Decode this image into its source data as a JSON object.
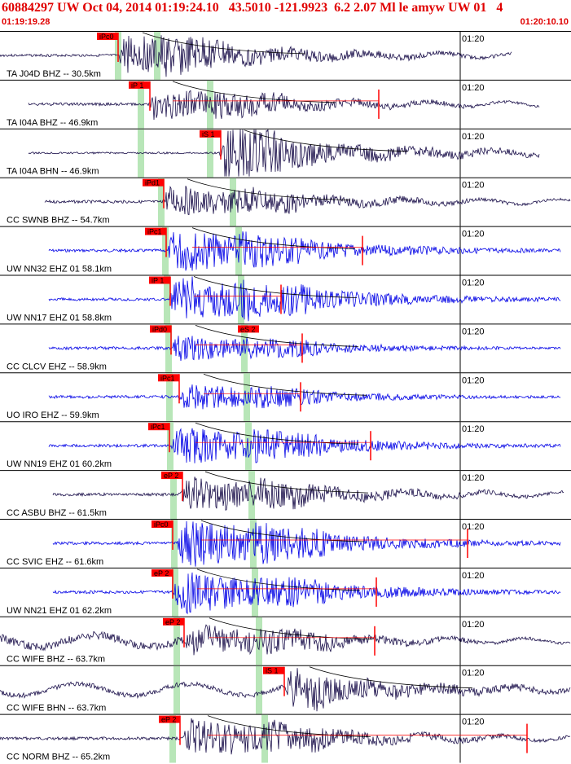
{
  "header": {
    "title": "60884297 UW Oct 04, 2014 01:19:24.10   43.5010 -121.9923  6.2 2.07 Ml le amyw UW 01   4",
    "start_time": "01:19:19.28",
    "end_time": "01:20:10.10"
  },
  "colors": {
    "broadband": "#1a0f4a",
    "shortperiod": "#0000e6",
    "pick": "#ff0000",
    "green_band": "#b8e6b8",
    "curve": "#000000"
  },
  "tick_label": "01:20",
  "traces": [
    {
      "label": "TA J04D BHZ -- 30.5km",
      "type": "bb",
      "amp": 0.45,
      "noise": 0.025,
      "p": 145,
      "s": 193,
      "onset": 145,
      "start": 0,
      "end": 628,
      "pick": "iPc0",
      "pick_x": 119,
      "spick": "",
      "spick_x": 0,
      "mark": 0
    },
    {
      "label": "TA I04A BHZ -- 46.9km",
      "type": "bb",
      "amp": 0.35,
      "noise": 0.03,
      "p": 173,
      "s": 258,
      "onset": 182,
      "start": 35,
      "end": 662,
      "pick": "iP 1",
      "pick_x": 158,
      "spick": "",
      "spick_x": 0,
      "mark": 465
    },
    {
      "label": "TA I04A BHN -- 46.9km",
      "type": "bb",
      "amp": 0.45,
      "noise": 0.02,
      "p": 173,
      "s": 258,
      "onset": 270,
      "start": 35,
      "end": 662,
      "pick": "iS 1",
      "pick_x": 245,
      "spick": "",
      "spick_x": 0,
      "mark": 0
    },
    {
      "label": "CC SWNB BHZ -- 54.7km",
      "type": "bb",
      "amp": 0.35,
      "noise": 0.03,
      "p": 198,
      "s": 286,
      "onset": 200,
      "start": 55,
      "end": 700,
      "pick": "iPd1",
      "pick_x": 175,
      "spick": "",
      "spick_x": 0,
      "mark": 0
    },
    {
      "label": "UW NN32 EHZ 01 58.1km",
      "type": "sp",
      "amp": 0.5,
      "noise": 0.03,
      "p": 203,
      "s": 293,
      "onset": 206,
      "start": 60,
      "end": 688,
      "pick": "iPc1",
      "pick_x": 178,
      "spick": "",
      "spick_x": 0,
      "mark": 445
    },
    {
      "label": "UW NN17 EHZ 01 58.8km",
      "type": "sp",
      "amp": 0.55,
      "noise": 0.03,
      "p": 205,
      "s": 296,
      "onset": 208,
      "start": 60,
      "end": 688,
      "pick": "iP 1",
      "pick_x": 183,
      "spick": "",
      "spick_x": 0,
      "mark": 345
    },
    {
      "label": "CC CLCV EHZ -- 58.9km",
      "type": "sp",
      "amp": 0.3,
      "noise": 0.03,
      "p": 207,
      "s": 300,
      "onset": 210,
      "start": 60,
      "end": 688,
      "pick": "iPd0",
      "pick_x": 184,
      "spick": "eS 2",
      "spick_x": 292,
      "mark": 371
    },
    {
      "label": "UO IRO EHZ -- 59.9km",
      "type": "sp",
      "amp": 0.3,
      "noise": 0.03,
      "p": 208,
      "s": 303,
      "onset": 220,
      "start": 60,
      "end": 688,
      "pick": "iPc1",
      "pick_x": 194,
      "spick": "",
      "spick_x": 0,
      "mark": 369
    },
    {
      "label": "UW NN19 EHZ 01 60.2km",
      "type": "sp",
      "amp": 0.45,
      "noise": 0.03,
      "p": 209,
      "s": 305,
      "onset": 210,
      "start": 60,
      "end": 688,
      "pick": "iPc1",
      "pick_x": 182,
      "spick": "",
      "spick_x": 0,
      "mark": 455
    },
    {
      "label": "CC ASBU BHZ -- 61.5km",
      "type": "bb",
      "amp": 0.4,
      "noise": 0.03,
      "p": 213,
      "s": 309,
      "onset": 222,
      "start": 65,
      "end": 692,
      "pick": "eP 2",
      "pick_x": 198,
      "spick": "",
      "spick_x": 0,
      "mark": 0
    },
    {
      "label": "CC SVIC EHZ -- 61.6km",
      "type": "sp",
      "amp": 0.55,
      "noise": 0.03,
      "p": 214,
      "s": 311,
      "onset": 217,
      "start": 65,
      "end": 688,
      "pick": "iPc0",
      "pick_x": 186,
      "spick": "",
      "spick_x": 0,
      "mark": 574
    },
    {
      "label": "UW NN21 EHZ 01 62.2km",
      "type": "sp",
      "amp": 0.5,
      "noise": 0.03,
      "p": 215,
      "s": 313,
      "onset": 212,
      "start": 65,
      "end": 688,
      "pick": "eP 2",
      "pick_x": 186,
      "spick": "",
      "spick_x": 0,
      "mark": 462
    },
    {
      "label": "CC WIFE BHZ -- 63.7km",
      "type": "bb",
      "amp": 0.35,
      "noise": 0.08,
      "p": 217,
      "s": 318,
      "onset": 227,
      "start": 0,
      "end": 700,
      "pick": "eP 2",
      "pick_x": 200,
      "spick": "",
      "spick_x": 0,
      "mark": 460
    },
    {
      "label": "CC WIFE BHN -- 63.7km",
      "type": "bb",
      "amp": 0.35,
      "noise": 0.05,
      "p": 217,
      "s": 318,
      "onset": 350,
      "start": 0,
      "end": 700,
      "pick": "iS 1",
      "pick_x": 323,
      "spick": "",
      "spick_x": 0,
      "mark": 0
    },
    {
      "label": "CC NORM BHZ -- 65.2km",
      "type": "bb",
      "amp": 0.45,
      "noise": 0.03,
      "p": 212,
      "s": 325,
      "onset": 225,
      "start": 0,
      "end": 700,
      "pick": "eP 2",
      "pick_x": 195,
      "spick": "",
      "spick_x": 0,
      "mark": 647
    }
  ]
}
